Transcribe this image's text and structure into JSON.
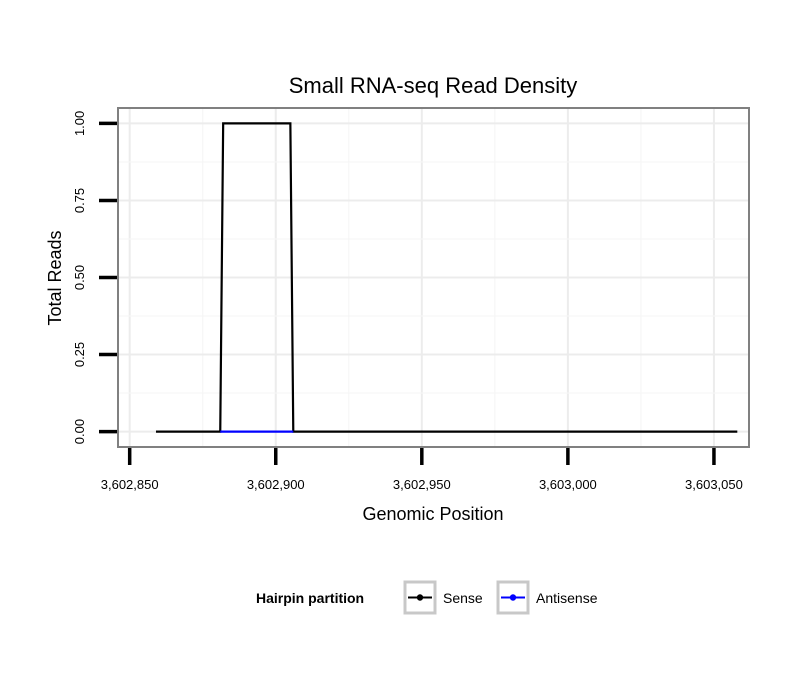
{
  "chart_data": {
    "type": "line",
    "title": "Small RNA-seq Read Density",
    "xlabel": "Genomic Position",
    "ylabel": "Total Reads",
    "xlim": [
      3602846,
      3603062
    ],
    "ylim": [
      -0.05,
      1.05
    ],
    "x_ticks": [
      3602850,
      3602900,
      3602950,
      3603000,
      3603050
    ],
    "x_tick_labels": [
      "3,602,850",
      "3,602,900",
      "3,602,950",
      "3,603,000",
      "3,603,050"
    ],
    "y_ticks": [
      0,
      0.25,
      0.5,
      0.75,
      1
    ],
    "y_tick_labels": [
      "0.00",
      "0.25",
      "0.50",
      "0.75",
      "1.00"
    ],
    "grid": true,
    "legend": {
      "title": "Hairpin partition",
      "position": "bottom",
      "entries": [
        "Sense",
        "Antisense"
      ]
    },
    "series": [
      {
        "name": "Sense",
        "color": "#000000",
        "x": [
          3602859,
          3602881,
          3602882,
          3602905,
          3602906,
          3603058
        ],
        "y": [
          0,
          0,
          1,
          1,
          0,
          0
        ]
      },
      {
        "name": "Antisense",
        "color": "#0000ff",
        "x": [
          3602881,
          3602906
        ],
        "y": [
          0,
          0
        ]
      }
    ]
  }
}
